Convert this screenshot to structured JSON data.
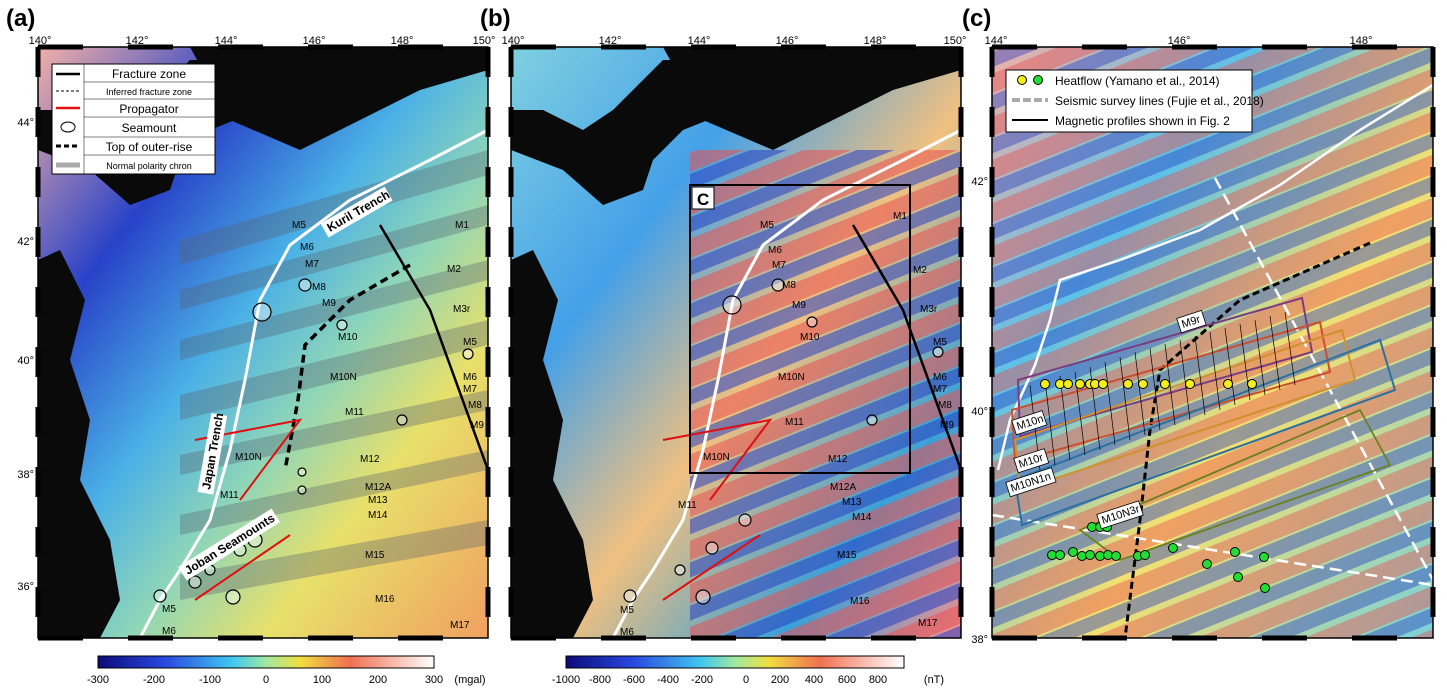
{
  "panels": [
    {
      "id": "a",
      "label": "(a)",
      "lon_ticks": [
        "140°",
        "142°",
        "144°",
        "146°",
        "148°",
        "150°"
      ],
      "lat_ticks": [
        "44°",
        "42°",
        "40°",
        "38°",
        "36°"
      ],
      "legend": [
        "Fracture zone",
        "Inferred fracture zone",
        "Propagator",
        "Seamount",
        "Top of outer-rise",
        "Normal polarity chron"
      ],
      "features": [
        "Kuril Trench",
        "Japan Trench",
        "Joban Seamounts"
      ],
      "chrons": [
        "M1",
        "M2",
        "M3r",
        "M5",
        "M6",
        "M7",
        "M8",
        "M9",
        "M10",
        "M10N",
        "M11",
        "M12",
        "M12A",
        "M13",
        "M14",
        "M15",
        "M16",
        "M17",
        "M5",
        "M6",
        "M7",
        "M8",
        "M9",
        "M10N",
        "M11",
        "M5",
        "M6"
      ],
      "colorbar": {
        "ticks": [
          "-300",
          "-200",
          "-100",
          "0",
          "100",
          "200",
          "300"
        ],
        "unit": "(mgal)"
      }
    },
    {
      "id": "b",
      "label": "(b)",
      "lon_ticks": [
        "140°",
        "142°",
        "144°",
        "146°",
        "148°",
        "150°"
      ],
      "inset_label": "C",
      "chrons": [
        "M1",
        "M2",
        "M3r",
        "M5",
        "M6",
        "M7",
        "M8",
        "M9",
        "M5",
        "M6",
        "M7",
        "M8",
        "M9",
        "M10",
        "M10N",
        "M11",
        "M12",
        "M12A",
        "M13",
        "M14",
        "M15",
        "M16",
        "M17",
        "M10N",
        "M11",
        "M5",
        "M6"
      ],
      "colorbar": {
        "ticks": [
          "-1000",
          "-800",
          "-600",
          "-400",
          "-200",
          "0",
          "200",
          "400",
          "600",
          "800"
        ],
        "unit": "(nT)"
      }
    },
    {
      "id": "c",
      "label": "(c)",
      "lon_ticks": [
        "144°",
        "146°",
        "148°"
      ],
      "lat_ticks": [
        "42°",
        "40°",
        "38°"
      ],
      "legend": [
        "Heatflow (Yamano et al., 2014)",
        "Seismic survey lines (Fujie et al., 2018)",
        "Magnetic profiles shown in Fig. 2"
      ],
      "profile_labels": [
        "M9r",
        "M10n",
        "M10r",
        "M10N1n",
        "M10N3r"
      ]
    }
  ],
  "colors": {
    "land": "#0a0a0a",
    "fracture_zone": "#000000",
    "propagator": "#e01010",
    "trench": "#ffffff",
    "heatflow_yellow": "#f4ee1a",
    "heatflow_green": "#22dd33"
  }
}
